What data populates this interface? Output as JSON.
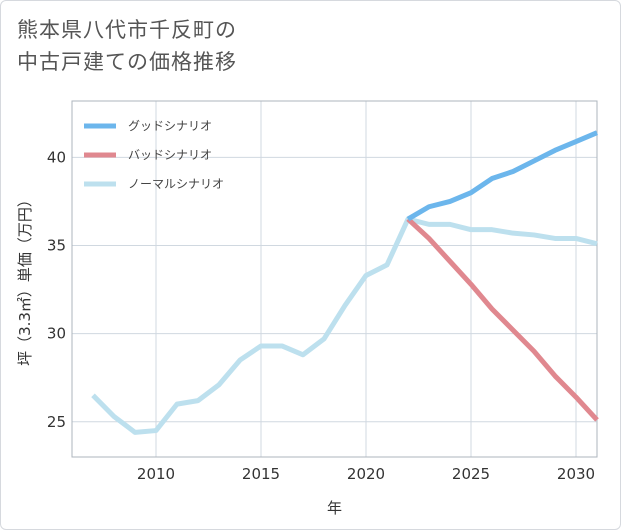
{
  "title": {
    "line1": "熊本県八代市千反町の",
    "line2": "中古戸建ての価格推移"
  },
  "colors": {
    "good": "#6cb6ec",
    "bad": "#e0888f",
    "normal": "#bde0ee",
    "grid": "#d0d8e0",
    "plot_border": "#aeb5bd"
  },
  "chart_data": {
    "type": "line",
    "title": "熊本県八代市千反町の中古戸建ての価格推移",
    "xlabel": "年",
    "ylabel": "坪（3.3㎡）単価（万円）",
    "xlim": [
      2006,
      2031
    ],
    "ylim": [
      23,
      43.2
    ],
    "xticks": [
      2010,
      2015,
      2020,
      2025,
      2030
    ],
    "xtick_labels": [
      "2010",
      "2015",
      "2020",
      "2025",
      "2030"
    ],
    "yticks": [
      25,
      30,
      35,
      40
    ],
    "ytick_labels": [
      "25",
      "30",
      "35",
      "40"
    ],
    "grid": true,
    "legend_position": "top-left",
    "series": [
      {
        "name": "グッドシナリオ",
        "key": "good",
        "x": [
          2022,
          2023,
          2024,
          2025,
          2026,
          2027,
          2028,
          2029,
          2030,
          2031
        ],
        "y": [
          36.5,
          37.2,
          37.5,
          38.0,
          38.8,
          39.2,
          39.8,
          40.4,
          40.9,
          41.4
        ]
      },
      {
        "name": "バッドシナリオ",
        "key": "bad",
        "x": [
          2022,
          2023,
          2024,
          2025,
          2026,
          2027,
          2028,
          2029,
          2030,
          2031
        ],
        "y": [
          36.5,
          35.4,
          34.1,
          32.8,
          31.4,
          30.2,
          29.0,
          27.6,
          26.4,
          25.1
        ]
      },
      {
        "name": "ノーマルシナリオ",
        "key": "normal",
        "x": [
          2007,
          2008,
          2009,
          2010,
          2011,
          2012,
          2013,
          2014,
          2015,
          2016,
          2017,
          2018,
          2019,
          2020,
          2021,
          2022,
          2023,
          2024,
          2025,
          2026,
          2027,
          2028,
          2029,
          2030,
          2031
        ],
        "y": [
          26.5,
          25.3,
          24.4,
          24.5,
          26.0,
          26.2,
          27.1,
          28.5,
          29.3,
          29.3,
          28.8,
          29.7,
          31.6,
          33.3,
          33.9,
          36.5,
          36.2,
          36.2,
          35.9,
          35.9,
          35.7,
          35.6,
          35.4,
          35.4,
          35.1
        ]
      }
    ]
  }
}
